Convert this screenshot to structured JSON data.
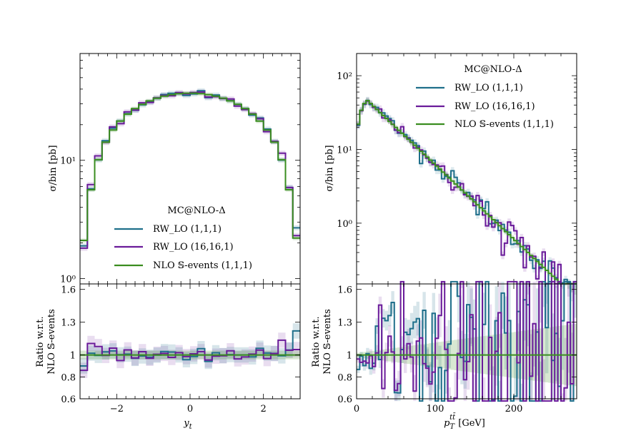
{
  "chart_data": [
    {
      "type": "line",
      "panel": "left-main",
      "xlabel": "y_t",
      "ylabel": "σ/bin [pb]",
      "yscale": "log",
      "xlim": [
        -3,
        3
      ],
      "ylim": [
        0.9,
        80
      ],
      "yticks": [
        {
          "v": 1,
          "label": "10⁰"
        },
        {
          "v": 10,
          "label": "10¹"
        }
      ],
      "legend": {
        "placement": "lower-center",
        "title": "MC@NLO-Δ",
        "entries": [
          "RW_LO (1,1,1)",
          "RW_LO (16,16,1)",
          "NLO 𝕊-events (1,1,1)"
        ]
      },
      "series": [
        {
          "name": "RW_LO (1,1,1)",
          "color": "#1f6f8b"
        },
        {
          "name": "RW_LO (16,16,1)",
          "color": "#6a1b9a"
        },
        {
          "name": "NLO 𝕊-events (1,1,1)",
          "color": "#3a8d1f"
        }
      ]
    },
    {
      "type": "line",
      "panel": "left-ratio",
      "ylabel": "Ratio w.r.t.\nNLO 𝕊-events",
      "ylim": [
        0.6,
        1.65
      ],
      "yticks": [
        "0.6",
        "0.8",
        "1",
        "1.3",
        "1.6"
      ],
      "xticks": [
        "−2",
        "0",
        "2"
      ],
      "xlabel": "y_t"
    },
    {
      "type": "line",
      "panel": "right-main",
      "ylabel": "σ/bin [pb]",
      "yscale": "log",
      "xlim": [
        0,
        280
      ],
      "ylim": [
        0.15,
        200
      ],
      "yticks": [
        {
          "v": 1,
          "label": "10⁰"
        },
        {
          "v": 10,
          "label": "10¹"
        },
        {
          "v": 100,
          "label": "10²"
        }
      ],
      "legend": {
        "placement": "upper-right",
        "title": "MC@NLO-Δ",
        "entries": [
          "RW_LO (1,1,1)",
          "RW_LO (16,16,1)",
          "NLO 𝕊-events (1,1,1)"
        ]
      }
    },
    {
      "type": "line",
      "panel": "right-ratio",
      "ylabel": "Ratio w.r.t.\nNLO 𝕊-events",
      "ylim": [
        0.6,
        1.65
      ],
      "yticks": [
        "0.6",
        "0.8",
        "1",
        "1.3",
        "1.6"
      ],
      "xticks": [
        "0",
        "100",
        "200"
      ],
      "xlabel": "p_T^{tt̄} [GeV]"
    }
  ],
  "text": {
    "left_ylabel_main": "σ/bin [pb]",
    "left_ylabel_ratio_1": "Ratio w.r.t.",
    "left_ylabel_ratio_2": "NLO 𝕊-events",
    "left_xlabel": "y",
    "left_xlabel_sub": "t",
    "right_ylabel_main": "σ/bin [pb]",
    "right_ylabel_ratio_1": "Ratio w.r.t.",
    "right_ylabel_ratio_2": "NLO 𝕊-events",
    "right_xlabel_p": "p",
    "right_xlabel_sub": "T",
    "right_xlabel_sup": "tt̄",
    "right_xlabel_unit": " [GeV]",
    "legend_title": "MC@NLO-Δ",
    "legend_1": "RW_LO (1,1,1)",
    "legend_2": "RW_LO (16,16,1)",
    "legend_3": "NLO 𝕊-events (1,1,1)"
  },
  "colors": {
    "blue": "#1f6f8b",
    "purple": "#6a1b9a",
    "green": "#3a8d1f"
  }
}
